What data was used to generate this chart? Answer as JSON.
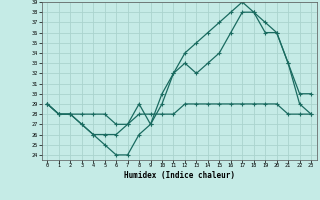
{
  "xlabel": "Humidex (Indice chaleur)",
  "background_color": "#c5ebe6",
  "grid_color": "#aad4ce",
  "line_color": "#1a6b60",
  "xlim": [
    -0.5,
    23.5
  ],
  "ylim": [
    23.5,
    39.0
  ],
  "yticks": [
    24,
    25,
    26,
    27,
    28,
    29,
    30,
    31,
    32,
    33,
    34,
    35,
    36,
    37,
    38,
    39
  ],
  "xticks": [
    0,
    1,
    2,
    3,
    4,
    5,
    6,
    7,
    8,
    9,
    10,
    11,
    12,
    13,
    14,
    15,
    16,
    17,
    18,
    19,
    20,
    21,
    22,
    23
  ],
  "line1_x": [
    0,
    1,
    2,
    3,
    4,
    5,
    6,
    7,
    8,
    9,
    10,
    11,
    12,
    13,
    14,
    15,
    16,
    17,
    18,
    19,
    20,
    21,
    22,
    23
  ],
  "line1_y": [
    29,
    28,
    28,
    27,
    26,
    25,
    24,
    24,
    26,
    27,
    29,
    32,
    33,
    32,
    33,
    34,
    36,
    38,
    38,
    36,
    36,
    33,
    30,
    30
  ],
  "line2_x": [
    0,
    1,
    2,
    3,
    4,
    5,
    6,
    7,
    8,
    9,
    10,
    11,
    12,
    13,
    14,
    15,
    16,
    17,
    18,
    19,
    20,
    21,
    22,
    23
  ],
  "line2_y": [
    29,
    28,
    28,
    27,
    26,
    26,
    26,
    27,
    29,
    27,
    30,
    32,
    34,
    35,
    36,
    37,
    38,
    39,
    38,
    37,
    36,
    33,
    29,
    28
  ],
  "line3_x": [
    0,
    1,
    2,
    3,
    4,
    5,
    6,
    7,
    8,
    9,
    10,
    11,
    12,
    13,
    14,
    15,
    16,
    17,
    18,
    19,
    20,
    21,
    22,
    23
  ],
  "line3_y": [
    29,
    28,
    28,
    28,
    28,
    28,
    27,
    27,
    28,
    28,
    28,
    28,
    29,
    29,
    29,
    29,
    29,
    29,
    29,
    29,
    29,
    28,
    28,
    28
  ]
}
